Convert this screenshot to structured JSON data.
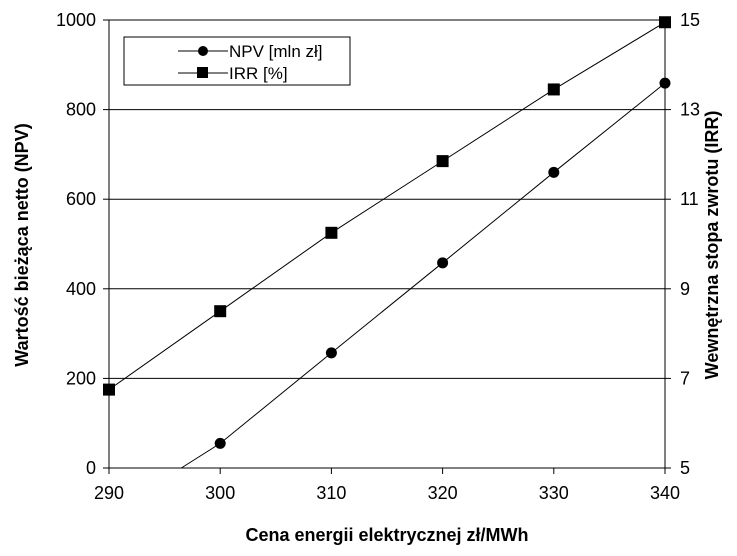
{
  "chart_data": {
    "type": "line",
    "x": [
      290,
      300,
      310,
      320,
      330,
      340
    ],
    "xlim": [
      290,
      340
    ],
    "xticks": [
      290,
      300,
      310,
      320,
      330,
      340
    ],
    "xlabel": "Cena energii elektrycznej zł/MWh",
    "ylabel_left": "Wartość bieżąca netto (NPV)",
    "ylim_left": [
      0,
      1000
    ],
    "yticks_left": [
      0,
      200,
      400,
      600,
      800,
      1000
    ],
    "ylabel_right": "Wewnętrzna stopa zwrotu (IRR)",
    "ylim_right": [
      5,
      15
    ],
    "yticks_right": [
      5,
      7,
      9,
      11,
      13,
      15
    ],
    "grid": "horizontal",
    "legend_position": "top-left",
    "series": [
      {
        "name": "NPV [mln zł]",
        "axis": "left",
        "marker": "circle",
        "line_start": [
          296.5,
          0
        ],
        "x": [
          300,
          310,
          320,
          330,
          340
        ],
        "values": [
          55,
          257,
          458,
          660,
          859
        ]
      },
      {
        "name": "IRR [%]",
        "axis": "right",
        "marker": "square",
        "x": [
          290,
          300,
          310,
          320,
          330,
          340
        ],
        "values": [
          6.75,
          8.5,
          10.25,
          11.85,
          13.45,
          14.95
        ]
      }
    ]
  }
}
